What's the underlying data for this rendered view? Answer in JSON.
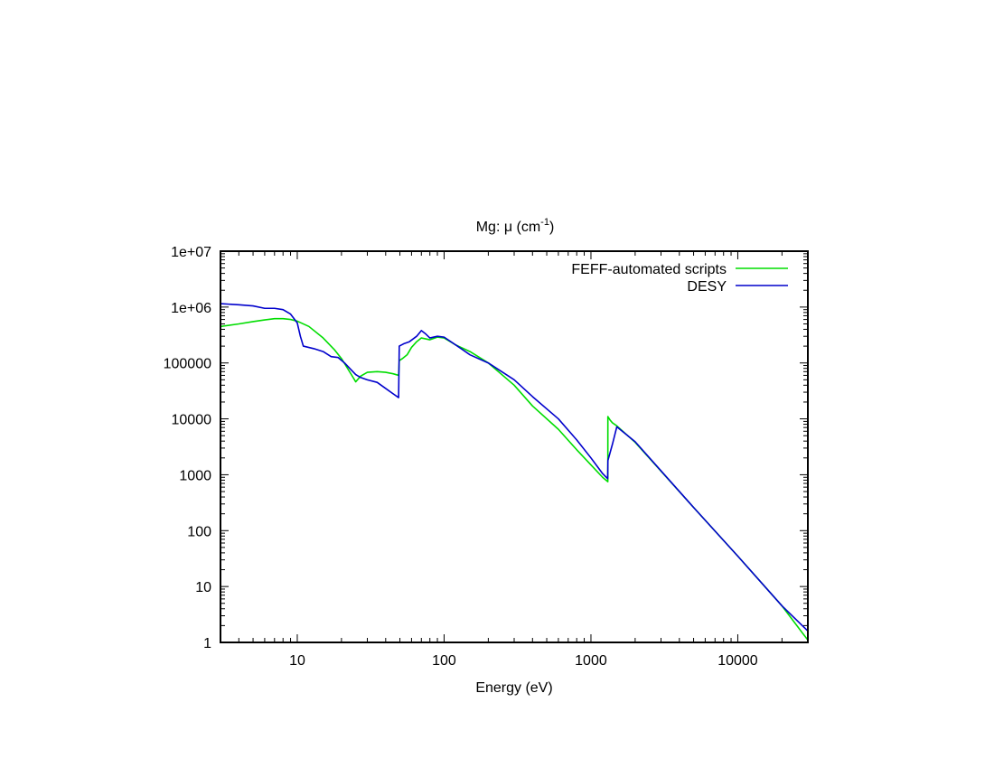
{
  "chart_data": {
    "type": "line",
    "title_main": "Mg: μ (cm",
    "title_sup": "-1",
    "title_close": ")",
    "xlabel": "Energy (eV)",
    "ylabel": "",
    "xscale": "log",
    "yscale": "log",
    "xlim": [
      3,
      30000
    ],
    "ylim": [
      1,
      10000000
    ],
    "grid": false,
    "legend_position": "top-right",
    "x_ticks": [
      {
        "value": 10,
        "label": "10"
      },
      {
        "value": 100,
        "label": "100"
      },
      {
        "value": 1000,
        "label": "1000"
      },
      {
        "value": 10000,
        "label": "10000"
      }
    ],
    "y_ticks": [
      {
        "value": 1,
        "label": "1"
      },
      {
        "value": 10,
        "label": "10"
      },
      {
        "value": 100,
        "label": "100"
      },
      {
        "value": 1000,
        "label": "1000"
      },
      {
        "value": 10000,
        "label": "10000"
      },
      {
        "value": 100000,
        "label": "100000"
      },
      {
        "value": 1000000,
        "label": "1e+06"
      },
      {
        "value": 10000000,
        "label": "1e+07"
      }
    ],
    "series": [
      {
        "name": "FEFF-automated scripts",
        "color": "#00dd00",
        "points": [
          [
            3,
            450000
          ],
          [
            4,
            500000
          ],
          [
            5,
            550000
          ],
          [
            6,
            590000
          ],
          [
            7,
            620000
          ],
          [
            8,
            620000
          ],
          [
            9,
            600000
          ],
          [
            10,
            560000
          ],
          [
            12,
            450000
          ],
          [
            15,
            280000
          ],
          [
            18,
            170000
          ],
          [
            20,
            120000
          ],
          [
            22,
            80000
          ],
          [
            24,
            55000
          ],
          [
            25,
            46000
          ],
          [
            27,
            58000
          ],
          [
            30,
            68000
          ],
          [
            35,
            70000
          ],
          [
            40,
            68000
          ],
          [
            45,
            64000
          ],
          [
            49,
            60000
          ],
          [
            49.5,
            110000
          ],
          [
            52,
            120000
          ],
          [
            56,
            140000
          ],
          [
            60,
            190000
          ],
          [
            65,
            240000
          ],
          [
            70,
            280000
          ],
          [
            75,
            270000
          ],
          [
            80,
            260000
          ],
          [
            90,
            290000
          ],
          [
            100,
            280000
          ],
          [
            120,
            210000
          ],
          [
            150,
            160000
          ],
          [
            200,
            100000
          ],
          [
            300,
            40000
          ],
          [
            400,
            17000
          ],
          [
            600,
            6500
          ],
          [
            800,
            2800
          ],
          [
            1000,
            1500
          ],
          [
            1200,
            900
          ],
          [
            1303,
            750
          ],
          [
            1304,
            11000
          ],
          [
            1350,
            9500
          ],
          [
            1400,
            8500
          ],
          [
            1500,
            7500
          ],
          [
            2000,
            3800
          ],
          [
            5000,
            260
          ],
          [
            10000,
            35
          ],
          [
            20000,
            4.5
          ],
          [
            30000,
            1.1
          ]
        ]
      },
      {
        "name": "DESY",
        "color": "#0000cc",
        "points": [
          [
            3,
            1150000
          ],
          [
            4,
            1100000
          ],
          [
            5,
            1050000
          ],
          [
            6,
            950000
          ],
          [
            7,
            950000
          ],
          [
            8,
            900000
          ],
          [
            9,
            750000
          ],
          [
            10,
            520000
          ],
          [
            10.5,
            300000
          ],
          [
            11,
            200000
          ],
          [
            13,
            180000
          ],
          [
            15,
            160000
          ],
          [
            17,
            130000
          ],
          [
            19,
            125000
          ],
          [
            21,
            100000
          ],
          [
            23,
            78000
          ],
          [
            25,
            62000
          ],
          [
            27,
            55000
          ],
          [
            30,
            50000
          ],
          [
            35,
            45000
          ],
          [
            40,
            35000
          ],
          [
            45,
            28000
          ],
          [
            49,
            24000
          ],
          [
            49.5,
            200000
          ],
          [
            53,
            220000
          ],
          [
            58,
            240000
          ],
          [
            65,
            300000
          ],
          [
            70,
            380000
          ],
          [
            75,
            330000
          ],
          [
            80,
            280000
          ],
          [
            90,
            300000
          ],
          [
            100,
            290000
          ],
          [
            120,
            210000
          ],
          [
            150,
            140000
          ],
          [
            200,
            100000
          ],
          [
            300,
            50000
          ],
          [
            400,
            25000
          ],
          [
            600,
            10000
          ],
          [
            800,
            4200
          ],
          [
            1000,
            2000
          ],
          [
            1200,
            1050
          ],
          [
            1300,
            850
          ],
          [
            1305,
            1800
          ],
          [
            1400,
            3500
          ],
          [
            1500,
            7200
          ],
          [
            2000,
            3900
          ],
          [
            5000,
            260
          ],
          [
            10000,
            35
          ],
          [
            20000,
            4.5
          ],
          [
            30000,
            1.6
          ]
        ]
      }
    ]
  }
}
